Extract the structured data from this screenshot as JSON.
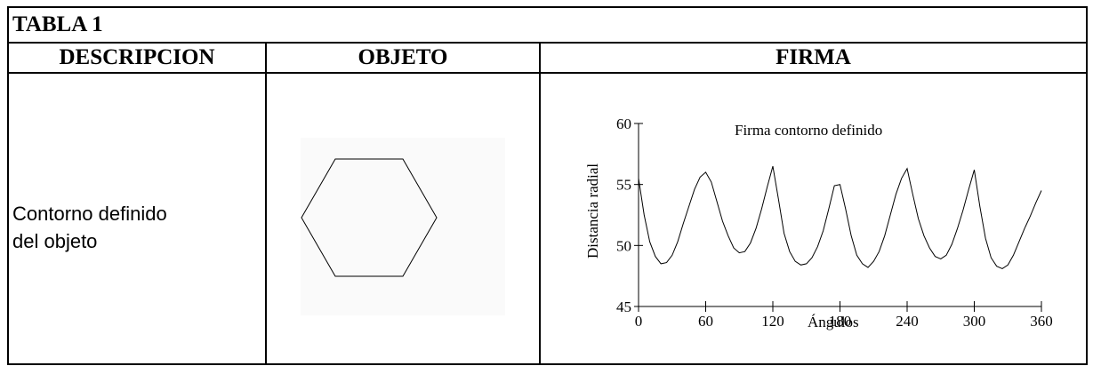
{
  "table": {
    "title": "TABLA 1",
    "headers": {
      "descripcion": "DESCRIPCION",
      "objeto": "OBJETO",
      "firma": "FIRMA"
    },
    "row": {
      "descripcion_line1": "Contorno definido",
      "descripcion_line2": "del objeto",
      "object_shape": "hexagon"
    }
  },
  "chart_data": {
    "type": "line",
    "title": "Firma contorno definido",
    "xlabel": "Ángulos",
    "ylabel": "Distancia radial",
    "xlim": [
      0,
      360
    ],
    "ylim": [
      45,
      60
    ],
    "xticks": [
      0,
      60,
      120,
      180,
      240,
      300,
      360
    ],
    "yticks": [
      45,
      50,
      55,
      60
    ],
    "grid": false,
    "series": [
      {
        "x": [
          0,
          5,
          10,
          15,
          20,
          25,
          30,
          35,
          40,
          45,
          50,
          55,
          60,
          65,
          70,
          75,
          80,
          85,
          90,
          95,
          100,
          105,
          110,
          115,
          120,
          125,
          130,
          135,
          140,
          145,
          150,
          155,
          160,
          165,
          170,
          175,
          180,
          185,
          190,
          195,
          200,
          205,
          210,
          215,
          220,
          225,
          230,
          235,
          240,
          245,
          250,
          255,
          260,
          265,
          270,
          275,
          280,
          285,
          290,
          295,
          300,
          305,
          310,
          315,
          320,
          325,
          330,
          335,
          340,
          345,
          350,
          355,
          360
        ],
        "y": [
          55.5,
          52.5,
          50.3,
          49.1,
          48.5,
          48.6,
          49.2,
          50.3,
          51.8,
          53.2,
          54.6,
          55.6,
          56.0,
          55.2,
          53.6,
          52.0,
          50.8,
          49.8,
          49.4,
          49.5,
          50.2,
          51.4,
          53.0,
          54.8,
          56.5,
          53.8,
          51.0,
          49.5,
          48.7,
          48.4,
          48.5,
          49.0,
          49.9,
          51.2,
          53.0,
          54.9,
          55.0,
          53.0,
          50.8,
          49.2,
          48.5,
          48.2,
          48.7,
          49.5,
          50.8,
          52.5,
          54.2,
          55.5,
          56.3,
          54.2,
          52.2,
          50.8,
          49.8,
          49.1,
          48.9,
          49.2,
          50.1,
          51.4,
          52.9,
          54.6,
          56.2,
          53.2,
          50.6,
          49.0,
          48.3,
          48.1,
          48.4,
          49.2,
          50.3,
          51.4,
          52.4,
          53.5,
          54.5
        ]
      }
    ]
  }
}
